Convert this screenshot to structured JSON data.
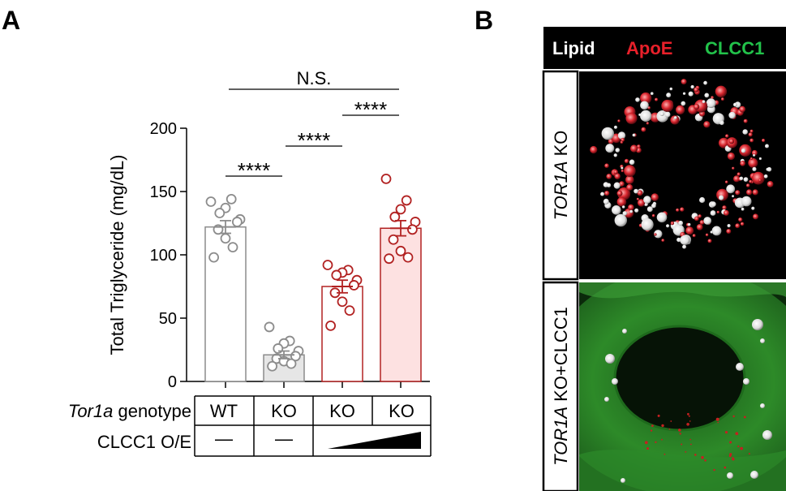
{
  "panel_a": {
    "letter": "A",
    "significance": [
      "N.S.",
      "****",
      "****",
      "****"
    ],
    "table": {
      "row1_label_italic": "Tor1a",
      "row1_label_rest": " genotype",
      "genotypes": [
        "WT",
        "KO",
        "KO",
        "KO"
      ],
      "row2_label": "CLCC1 O/E",
      "clcc1_oe": [
        "—",
        "—",
        "ramp",
        "ramp"
      ]
    }
  },
  "panel_b": {
    "letter": "B",
    "header": [
      "Lipid",
      "ApoE",
      "CLCC1"
    ],
    "header_colors": [
      "#ffffff",
      "#e8202a",
      "#22c24a"
    ],
    "row1_label_italic": "TOR1A",
    "row1_label_rest": " KO",
    "row2_label_italic": "TOR1A",
    "row2_label_rest": " KO+CLCC1"
  },
  "chart_data": {
    "type": "bar",
    "ylabel": "Total Triglyceride (mg/dL)",
    "ylim": [
      0,
      200
    ],
    "yticks": [
      0,
      50,
      100,
      150,
      200
    ],
    "categories": [
      "WT",
      "KO",
      "KO",
      "KO"
    ],
    "values": [
      122,
      21,
      75,
      121
    ],
    "sem": [
      5,
      3,
      5,
      6
    ],
    "bar_fill": [
      "#ffffff",
      "#e6e6e6",
      "#ffffff",
      "#fde1e1"
    ],
    "bar_stroke": [
      "#8c8c8c",
      "#8c8c8c",
      "#b22222",
      "#b22222"
    ],
    "points": [
      [
        142,
        144,
        137,
        133,
        128,
        126,
        120,
        113,
        106,
        98
      ],
      [
        43,
        32,
        30,
        26,
        24,
        20,
        18,
        16,
        14,
        12
      ],
      [
        92,
        88,
        86,
        84,
        80,
        76,
        70,
        63,
        56,
        44
      ],
      [
        160,
        143,
        136,
        130,
        126,
        120,
        112,
        103,
        98,
        97
      ]
    ],
    "comparisons": [
      {
        "groups": [
          0,
          3
        ],
        "label": "N.S."
      },
      {
        "groups": [
          2,
          3
        ],
        "label": "****"
      },
      {
        "groups": [
          1,
          2
        ],
        "label": "****"
      },
      {
        "groups": [
          0,
          1
        ],
        "label": "****"
      }
    ]
  }
}
